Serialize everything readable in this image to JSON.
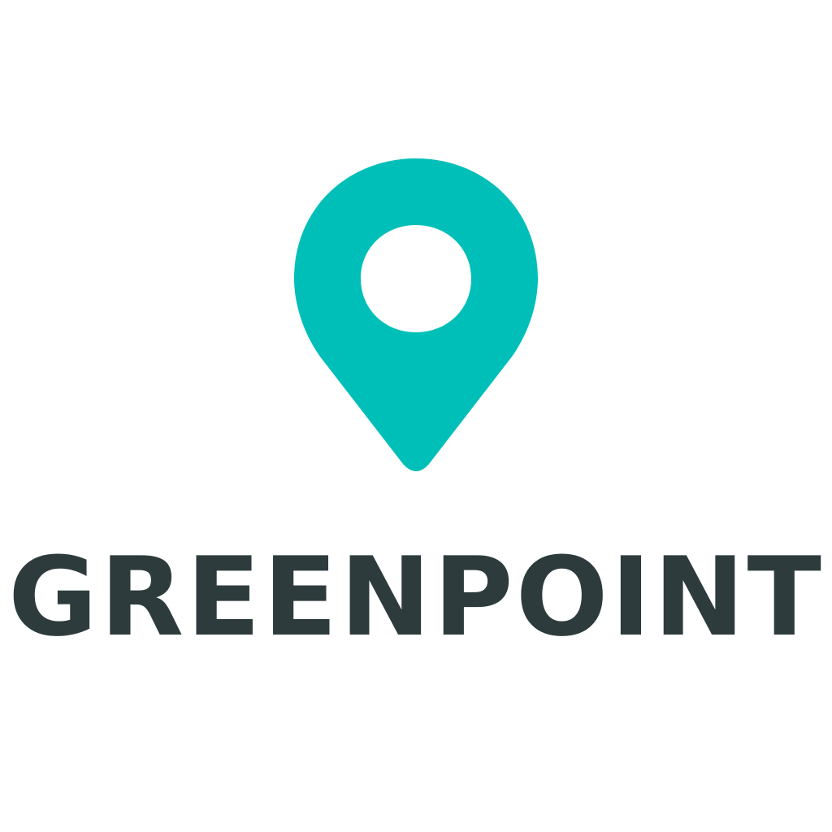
{
  "brand": {
    "name": "GREENPOINT",
    "icon": "map-pin-icon",
    "colors": {
      "pin": "#00bfb9",
      "wordmark": "#2d3b3d",
      "background": "#ffffff"
    }
  }
}
